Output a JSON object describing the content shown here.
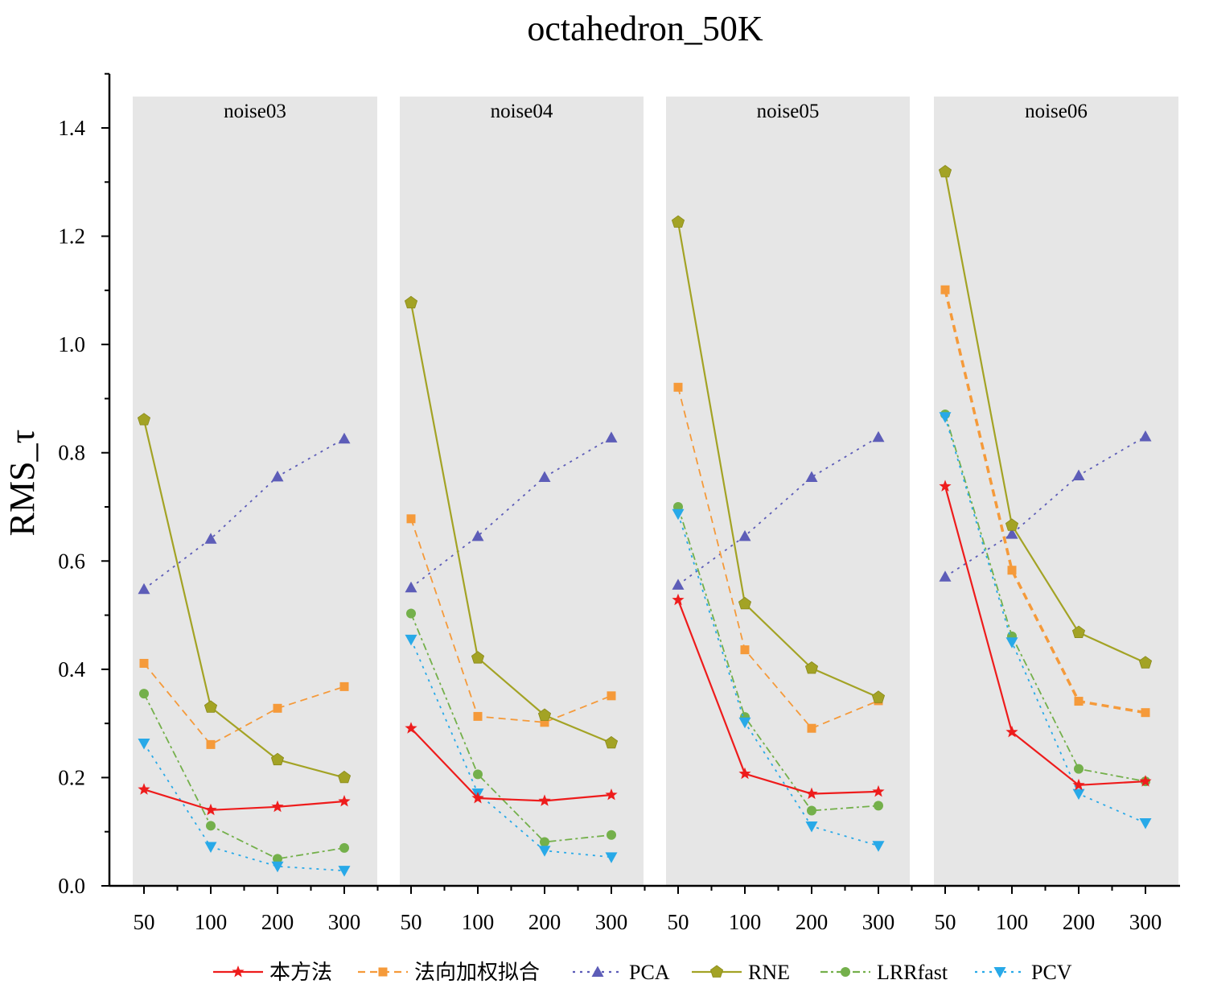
{
  "chart_data": {
    "type": "line",
    "title": "octahedron_50K",
    "ylabel": "RMS_τ",
    "xlabel": "",
    "ylim": [
      0,
      1.5
    ],
    "yticks": [
      0.0,
      0.2,
      0.4,
      0.6,
      0.8,
      1.0,
      1.2,
      1.4
    ],
    "ytick_labels": [
      "0.0",
      "0.2",
      "0.4",
      "0.6",
      "0.8",
      "1.0",
      "1.2",
      "1.4"
    ],
    "categories": [
      "50",
      "100",
      "200",
      "300"
    ],
    "legend_position": "bottom",
    "panels": [
      {
        "name": "noise03",
        "series": [
          {
            "name": "本方法",
            "values": [
              0.178,
              0.14,
              0.146,
              0.156
            ]
          },
          {
            "name": "法向加权拟合",
            "values": [
              0.411,
              0.261,
              0.328,
              0.368
            ]
          },
          {
            "name": "PCA",
            "values": [
              0.548,
              0.641,
              0.756,
              0.826
            ]
          },
          {
            "name": "RNE",
            "values": [
              0.861,
              0.33,
              0.233,
              0.2
            ]
          },
          {
            "name": "LRRfast",
            "values": [
              0.355,
              0.111,
              0.05,
              0.07
            ]
          },
          {
            "name": "PCV",
            "values": [
              0.263,
              0.072,
              0.036,
              0.028
            ]
          }
        ]
      },
      {
        "name": "noise04",
        "series": [
          {
            "name": "本方法",
            "values": [
              0.291,
              0.162,
              0.157,
              0.168
            ]
          },
          {
            "name": "法向加权拟合",
            "values": [
              0.678,
              0.313,
              0.302,
              0.351
            ]
          },
          {
            "name": "PCA",
            "values": [
              0.551,
              0.646,
              0.755,
              0.828
            ]
          },
          {
            "name": "RNE",
            "values": [
              1.077,
              0.421,
              0.315,
              0.264
            ]
          },
          {
            "name": "LRRfast",
            "values": [
              0.503,
              0.206,
              0.081,
              0.094
            ]
          },
          {
            "name": "PCV",
            "values": [
              0.455,
              0.171,
              0.065,
              0.053
            ]
          }
        ]
      },
      {
        "name": "noise05",
        "series": [
          {
            "name": "本方法",
            "values": [
              0.528,
              0.207,
              0.17,
              0.174
            ]
          },
          {
            "name": "法向加权拟合",
            "values": [
              0.921,
              0.436,
              0.291,
              0.342
            ]
          },
          {
            "name": "PCA",
            "values": [
              0.556,
              0.646,
              0.755,
              0.829
            ]
          },
          {
            "name": "RNE",
            "values": [
              1.226,
              0.521,
              0.402,
              0.348
            ]
          },
          {
            "name": "LRRfast",
            "values": [
              0.7,
              0.312,
              0.139,
              0.148
            ]
          },
          {
            "name": "PCV",
            "values": [
              0.687,
              0.302,
              0.11,
              0.074
            ]
          }
        ]
      },
      {
        "name": "noise06",
        "series": [
          {
            "name": "本方法",
            "values": [
              0.738,
              0.284,
              0.186,
              0.193
            ]
          },
          {
            "name": "法向加权拟合",
            "values": [
              1.101,
              0.583,
              0.341,
              0.32
            ]
          },
          {
            "name": "PCA",
            "values": [
              0.571,
              0.65,
              0.758,
              0.83
            ]
          },
          {
            "name": "RNE",
            "values": [
              1.319,
              0.666,
              0.468,
              0.412
            ]
          },
          {
            "name": "LRRfast",
            "values": [
              0.871,
              0.461,
              0.216,
              0.193
            ]
          },
          {
            "name": "PCV",
            "values": [
              0.866,
              0.45,
              0.17,
              0.116
            ]
          }
        ]
      }
    ],
    "legend": [
      {
        "name": "本方法",
        "color": "#ee1c1c",
        "marker": "star",
        "dash": "solid"
      },
      {
        "name": "法向加权拟合",
        "color": "#f59a3a",
        "marker": "square",
        "dash": "dashed"
      },
      {
        "name": "PCA",
        "color": "#5d5db8",
        "marker": "triangle-up",
        "dash": "dotted"
      },
      {
        "name": "RNE",
        "color": "#a3a325",
        "marker": "pentagon",
        "dash": "solid"
      },
      {
        "name": "LRRfast",
        "color": "#74b04b",
        "marker": "circle",
        "dash": "dashdot"
      },
      {
        "name": "PCV",
        "color": "#28a9e8",
        "marker": "triangle-down",
        "dash": "dotted"
      }
    ]
  }
}
